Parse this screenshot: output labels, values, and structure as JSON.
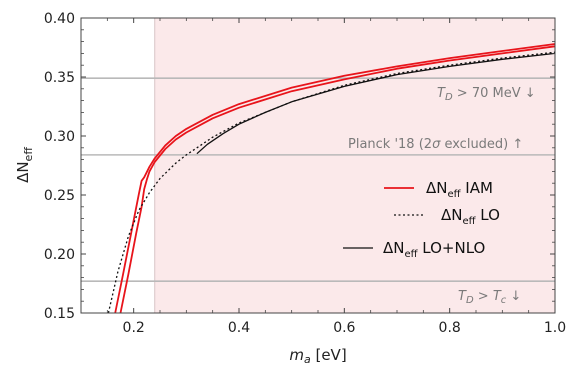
{
  "chart_data": {
    "type": "line",
    "xlabel_main": "m",
    "xlabel_sub": "a",
    "xlabel_unit": " [eV]",
    "ylabel_main": "ΔN",
    "ylabel_sub": "eff",
    "xlim": [
      0.1,
      1.0
    ],
    "ylim": [
      0.15,
      0.4
    ],
    "xticks": [
      0.2,
      0.4,
      0.6,
      0.8,
      1.0
    ],
    "xtick_labels": [
      "0.2",
      "0.4",
      "0.6",
      "0.8",
      "1.0"
    ],
    "yticks": [
      0.15,
      0.2,
      0.25,
      0.3,
      0.35,
      0.4
    ],
    "ytick_labels": [
      "0.15",
      "0.20",
      "0.25",
      "0.30",
      "0.35",
      "0.40"
    ],
    "shaded_region": {
      "x_from": 0.24,
      "x_to": 1.0,
      "color": "#fbe9ea"
    },
    "hlines": [
      {
        "y": 0.349,
        "label": "T_D > 70 MeV ↓"
      },
      {
        "y": 0.284,
        "label": "Planck '18 (2σ excluded) ↑"
      },
      {
        "y": 0.177,
        "label": "T_D > T_c ↓"
      }
    ],
    "annotation_parts": {
      "td70": {
        "T": "T",
        "D": "D",
        "rest": " > 70 MeV ↓"
      },
      "planck": {
        "pre": "Planck '18 (2",
        "sigma": "σ",
        "post": " excluded) ↑"
      },
      "tdtc": {
        "T": "T",
        "D": "D",
        "mid": " > ",
        "T2": "T",
        "c": "c",
        "arrow": " ↓"
      }
    },
    "legend": [
      {
        "main": "ΔN",
        "sub": "eff",
        "rest": " IAM",
        "color": "#e8141b",
        "style": "solid"
      },
      {
        "main": "ΔN",
        "sub": "eff",
        "rest": " LO",
        "color": "#111111",
        "style": "dotted"
      },
      {
        "main": "ΔN",
        "sub": "eff",
        "rest": " LO+NLO",
        "color": "#111111",
        "style": "solid"
      }
    ],
    "series": [
      {
        "name": "ΔNeff IAM",
        "color": "#e8141b",
        "width": 1.8,
        "dash": "",
        "points": [
          [
            0.165,
            0.15
          ],
          [
            0.18,
            0.183
          ],
          [
            0.195,
            0.217
          ],
          [
            0.21,
            0.251
          ],
          [
            0.215,
            0.262
          ],
          [
            0.22,
            0.265
          ],
          [
            0.23,
            0.274
          ],
          [
            0.24,
            0.281
          ],
          [
            0.26,
            0.292
          ],
          [
            0.28,
            0.3
          ],
          [
            0.3,
            0.306
          ],
          [
            0.35,
            0.318
          ],
          [
            0.4,
            0.327
          ],
          [
            0.5,
            0.341
          ],
          [
            0.6,
            0.351
          ],
          [
            0.7,
            0.359
          ],
          [
            0.8,
            0.366
          ],
          [
            0.9,
            0.372
          ],
          [
            1.0,
            0.378
          ]
        ]
      },
      {
        "name": "ΔNeff IAM (lower branch)",
        "color": "#e8141b",
        "width": 1.8,
        "dash": "",
        "points": [
          [
            0.175,
            0.15
          ],
          [
            0.19,
            0.183
          ],
          [
            0.205,
            0.218
          ],
          [
            0.215,
            0.24
          ],
          [
            0.22,
            0.255
          ],
          [
            0.225,
            0.263
          ],
          [
            0.23,
            0.27
          ],
          [
            0.24,
            0.278
          ],
          [
            0.26,
            0.289
          ],
          [
            0.28,
            0.297
          ],
          [
            0.3,
            0.303
          ],
          [
            0.35,
            0.315
          ],
          [
            0.4,
            0.324
          ],
          [
            0.5,
            0.338
          ],
          [
            0.6,
            0.348
          ],
          [
            0.7,
            0.357
          ],
          [
            0.8,
            0.364
          ],
          [
            0.9,
            0.37
          ],
          [
            1.0,
            0.376
          ]
        ]
      },
      {
        "name": "ΔNeff LO",
        "color": "#111111",
        "width": 1.3,
        "dash": "2,2.5",
        "points": [
          [
            0.152,
            0.15
          ],
          [
            0.17,
            0.185
          ],
          [
            0.19,
            0.215
          ],
          [
            0.21,
            0.237
          ],
          [
            0.23,
            0.252
          ],
          [
            0.25,
            0.264
          ],
          [
            0.28,
            0.277
          ],
          [
            0.3,
            0.284
          ],
          [
            0.35,
            0.299
          ],
          [
            0.4,
            0.311
          ],
          [
            0.5,
            0.329
          ],
          [
            0.6,
            0.343
          ],
          [
            0.7,
            0.353
          ],
          [
            0.8,
            0.36
          ],
          [
            0.9,
            0.366
          ],
          [
            1.0,
            0.371
          ]
        ]
      },
      {
        "name": "ΔNeff LO+NLO",
        "color": "#111111",
        "width": 1.3,
        "dash": "",
        "points": [
          [
            0.32,
            0.285
          ],
          [
            0.34,
            0.293
          ],
          [
            0.37,
            0.302
          ],
          [
            0.4,
            0.31
          ],
          [
            0.45,
            0.32
          ],
          [
            0.5,
            0.329
          ],
          [
            0.6,
            0.342
          ],
          [
            0.7,
            0.352
          ],
          [
            0.8,
            0.359
          ],
          [
            0.9,
            0.365
          ],
          [
            1.0,
            0.37
          ]
        ]
      }
    ]
  }
}
